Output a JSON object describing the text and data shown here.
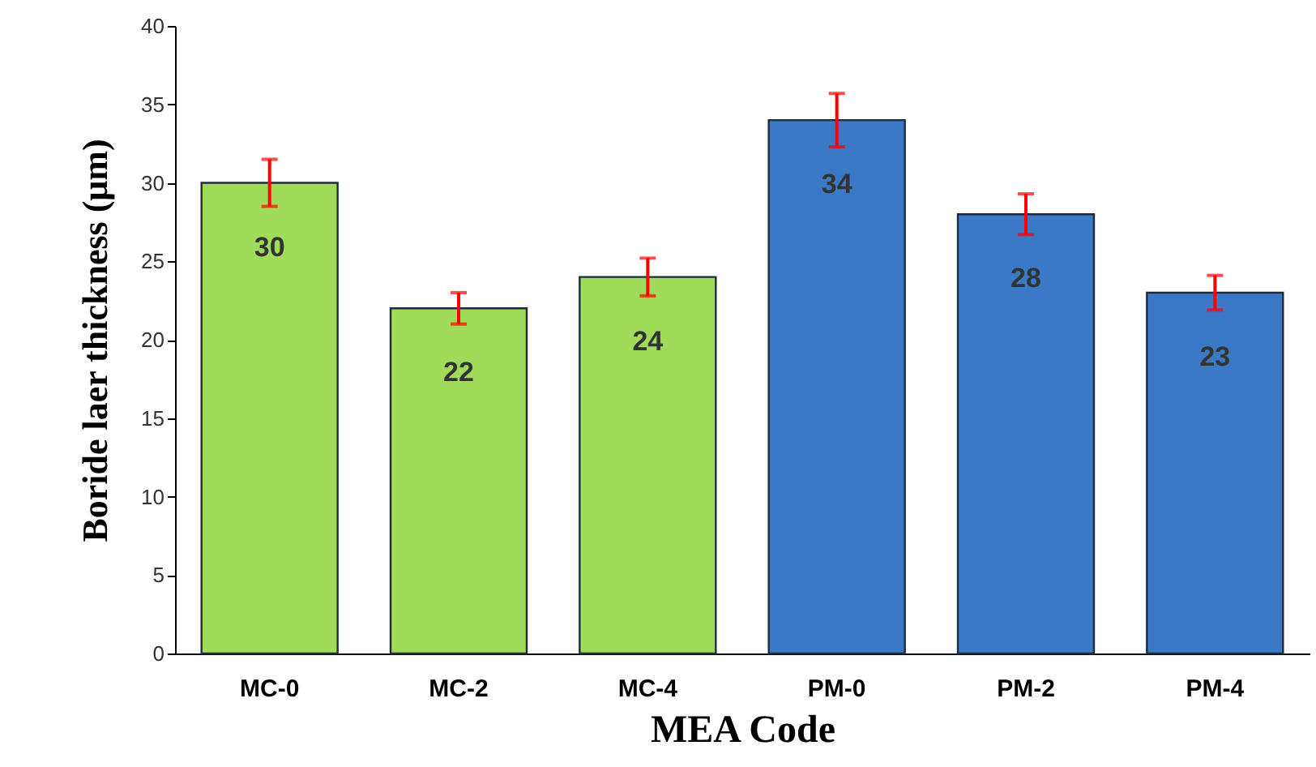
{
  "chart_data": {
    "type": "bar",
    "xlabel": "MEA Code",
    "ylabel": "Boride laer thickness (μm)",
    "categories": [
      "MC-0",
      "MC-2",
      "MC-4",
      "PM-0",
      "PM-2",
      "PM-4"
    ],
    "values": [
      30,
      22,
      24,
      34,
      28,
      23
    ],
    "colors": [
      "#a0dc5a",
      "#a0dc5a",
      "#a0dc5a",
      "#3b78c6",
      "#3b78c6",
      "#3b78c6"
    ],
    "errors": [
      1.5,
      1,
      1.2,
      1.7,
      1.3,
      1.1
    ],
    "ylim": [
      0,
      40
    ],
    "yticks": [
      0,
      5,
      10,
      15,
      20,
      25,
      30,
      35,
      40
    ],
    "grid": false,
    "data_labels": true
  }
}
